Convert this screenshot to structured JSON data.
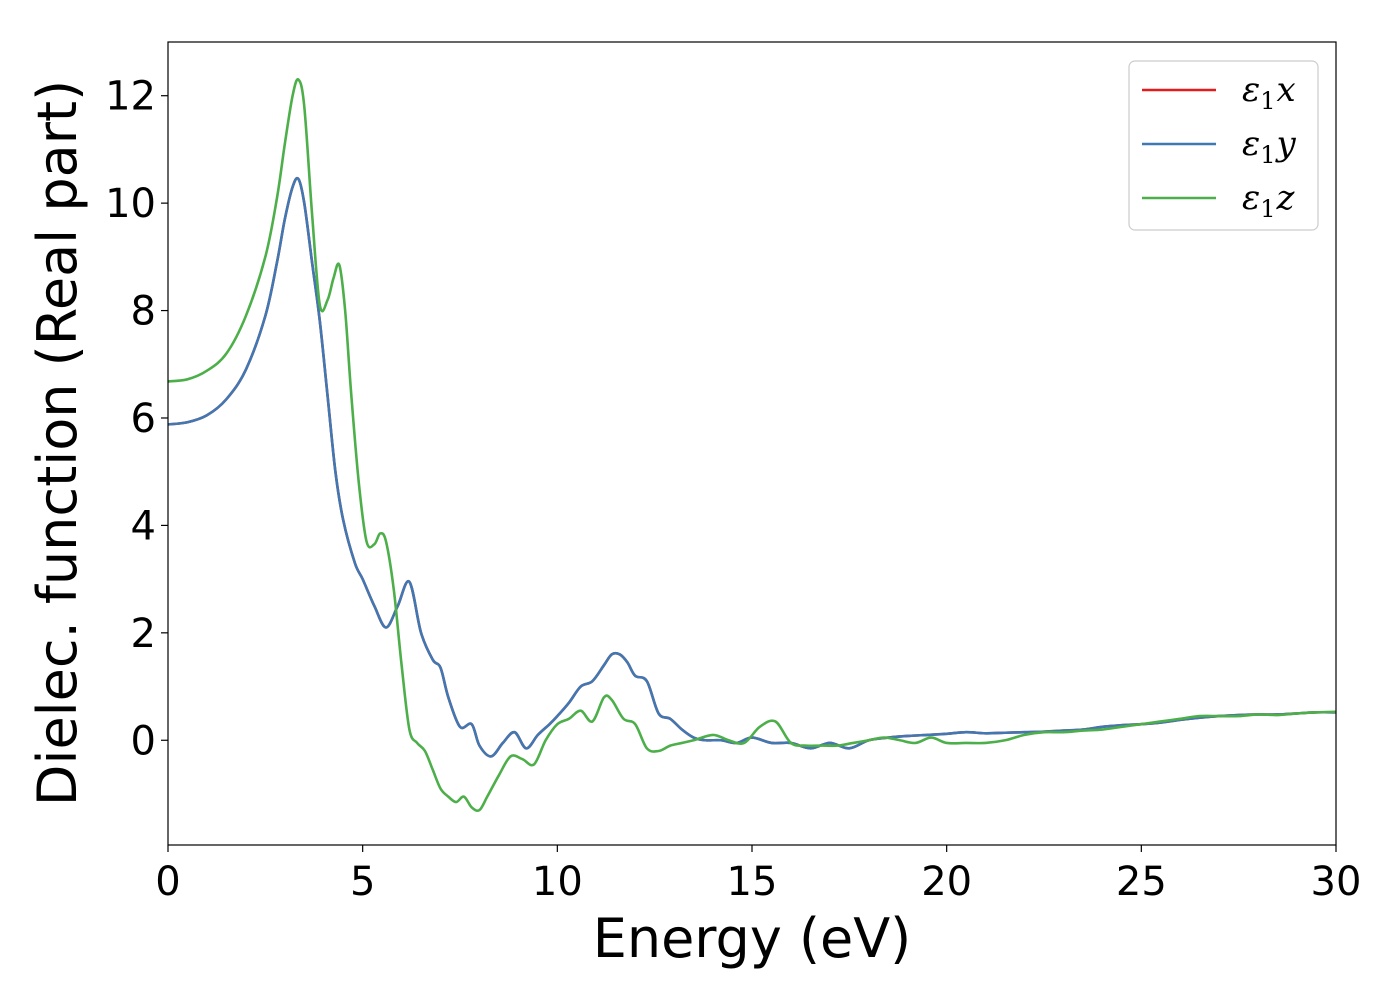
{
  "chart_data": {
    "type": "line",
    "title": "",
    "xlabel": "Energy (eV)",
    "ylabel": "Dielec. function (Real part)",
    "xlim": [
      0,
      30
    ],
    "ylim": [
      -1.95,
      13.0
    ],
    "xticks": [
      0,
      5,
      10,
      15,
      20,
      25,
      30
    ],
    "yticks": [
      0,
      2,
      4,
      6,
      8,
      10,
      12
    ],
    "grid": false,
    "legend_position": "top-right",
    "series": [
      {
        "name": "ε1x",
        "name_base": "ε",
        "name_sub": "1",
        "name_suffix": "x",
        "color": "#e41a1c",
        "x": [
          0,
          0.5,
          1.0,
          1.5,
          2.0,
          2.5,
          2.8,
          3.0,
          3.2,
          3.35,
          3.5,
          3.7,
          3.9,
          4.1,
          4.3,
          4.5,
          4.8,
          5.0,
          5.3,
          5.6,
          5.9,
          6.2,
          6.5,
          6.8,
          7.0,
          7.2,
          7.5,
          7.8,
          8.0,
          8.3,
          8.6,
          8.9,
          9.2,
          9.5,
          9.8,
          10.0,
          10.3,
          10.6,
          10.9,
          11.2,
          11.4,
          11.6,
          11.8,
          12.0,
          12.3,
          12.6,
          12.9,
          13.2,
          13.5,
          13.8,
          14.2,
          14.6,
          15.0,
          15.5,
          16.0,
          16.5,
          17.0,
          17.5,
          18.0,
          18.5,
          19.0,
          19.5,
          20.0,
          20.5,
          21.0,
          21.5,
          22.0,
          22.5,
          23.0,
          23.5,
          24.0,
          24.5,
          25.0,
          25.5,
          26.0,
          26.5,
          27.0,
          27.5,
          28.0,
          28.5,
          29.0,
          29.5,
          30.0
        ],
        "values": [
          5.88,
          5.92,
          6.05,
          6.35,
          6.9,
          7.9,
          8.9,
          9.7,
          10.3,
          10.45,
          10.0,
          8.9,
          7.8,
          6.4,
          5.0,
          4.1,
          3.3,
          3.0,
          2.5,
          2.1,
          2.5,
          2.95,
          2.0,
          1.5,
          1.35,
          0.8,
          0.25,
          0.3,
          -0.1,
          -0.3,
          -0.05,
          0.15,
          -0.15,
          0.1,
          0.3,
          0.45,
          0.7,
          1.0,
          1.1,
          1.4,
          1.6,
          1.6,
          1.45,
          1.2,
          1.1,
          0.5,
          0.4,
          0.2,
          0.05,
          0.0,
          0.0,
          -0.05,
          0.05,
          -0.05,
          -0.05,
          -0.15,
          -0.05,
          -0.15,
          0.0,
          0.05,
          0.08,
          0.1,
          0.12,
          0.15,
          0.13,
          0.14,
          0.15,
          0.16,
          0.18,
          0.2,
          0.25,
          0.28,
          0.3,
          0.33,
          0.38,
          0.42,
          0.45,
          0.47,
          0.48,
          0.48,
          0.5,
          0.52,
          0.52
        ]
      },
      {
        "name": "ε1y",
        "name_base": "ε",
        "name_sub": "1",
        "name_suffix": "y",
        "color": "#3f78b2",
        "x": [
          0,
          0.5,
          1.0,
          1.5,
          2.0,
          2.5,
          2.8,
          3.0,
          3.2,
          3.35,
          3.5,
          3.7,
          3.9,
          4.1,
          4.3,
          4.5,
          4.8,
          5.0,
          5.3,
          5.6,
          5.9,
          6.2,
          6.5,
          6.8,
          7.0,
          7.2,
          7.5,
          7.8,
          8.0,
          8.3,
          8.6,
          8.9,
          9.2,
          9.5,
          9.8,
          10.0,
          10.3,
          10.6,
          10.9,
          11.2,
          11.4,
          11.6,
          11.8,
          12.0,
          12.3,
          12.6,
          12.9,
          13.2,
          13.5,
          13.8,
          14.2,
          14.6,
          15.0,
          15.5,
          16.0,
          16.5,
          17.0,
          17.5,
          18.0,
          18.5,
          19.0,
          19.5,
          20.0,
          20.5,
          21.0,
          21.5,
          22.0,
          22.5,
          23.0,
          23.5,
          24.0,
          24.5,
          25.0,
          25.5,
          26.0,
          26.5,
          27.0,
          27.5,
          28.0,
          28.5,
          29.0,
          29.5,
          30.0
        ],
        "values": [
          5.88,
          5.92,
          6.05,
          6.35,
          6.9,
          7.9,
          8.9,
          9.7,
          10.3,
          10.45,
          10.0,
          8.9,
          7.8,
          6.4,
          5.0,
          4.1,
          3.3,
          3.0,
          2.5,
          2.1,
          2.5,
          2.95,
          2.0,
          1.5,
          1.35,
          0.8,
          0.25,
          0.3,
          -0.1,
          -0.3,
          -0.05,
          0.15,
          -0.15,
          0.1,
          0.3,
          0.45,
          0.7,
          1.0,
          1.1,
          1.4,
          1.6,
          1.6,
          1.45,
          1.2,
          1.1,
          0.5,
          0.4,
          0.2,
          0.05,
          0.0,
          0.0,
          -0.05,
          0.05,
          -0.05,
          -0.05,
          -0.15,
          -0.05,
          -0.15,
          0.0,
          0.05,
          0.08,
          0.1,
          0.12,
          0.15,
          0.13,
          0.14,
          0.15,
          0.16,
          0.18,
          0.2,
          0.25,
          0.28,
          0.3,
          0.33,
          0.38,
          0.42,
          0.45,
          0.47,
          0.48,
          0.48,
          0.5,
          0.52,
          0.52
        ]
      },
      {
        "name": "ε1z",
        "name_base": "ε",
        "name_sub": "1",
        "name_suffix": "z",
        "color": "#4daf4a",
        "x": [
          0,
          0.5,
          1.0,
          1.5,
          2.0,
          2.5,
          2.8,
          3.0,
          3.2,
          3.35,
          3.5,
          3.7,
          3.9,
          4.1,
          4.25,
          4.4,
          4.55,
          4.7,
          4.9,
          5.1,
          5.3,
          5.45,
          5.6,
          5.8,
          6.0,
          6.2,
          6.4,
          6.6,
          6.8,
          7.0,
          7.2,
          7.4,
          7.6,
          7.8,
          8.0,
          8.2,
          8.5,
          8.8,
          9.1,
          9.4,
          9.7,
          10.0,
          10.3,
          10.6,
          10.9,
          11.2,
          11.4,
          11.7,
          12.0,
          12.3,
          12.6,
          12.9,
          13.2,
          13.5,
          14.0,
          14.4,
          14.8,
          15.2,
          15.6,
          16.0,
          16.4,
          16.8,
          17.2,
          17.6,
          18.0,
          18.4,
          18.8,
          19.2,
          19.6,
          20.0,
          20.5,
          21.0,
          21.5,
          22.0,
          22.5,
          23.0,
          23.5,
          24.0,
          24.5,
          25.0,
          25.5,
          26.0,
          26.5,
          27.0,
          27.5,
          28.0,
          28.5,
          29.0,
          29.5,
          30.0
        ],
        "values": [
          6.68,
          6.72,
          6.88,
          7.2,
          7.9,
          9.0,
          10.1,
          11.1,
          12.0,
          12.3,
          11.8,
          9.8,
          8.1,
          8.2,
          8.6,
          8.85,
          8.0,
          6.5,
          4.8,
          3.7,
          3.65,
          3.85,
          3.7,
          2.8,
          1.4,
          0.2,
          -0.05,
          -0.2,
          -0.55,
          -0.9,
          -1.05,
          -1.15,
          -1.05,
          -1.25,
          -1.3,
          -1.05,
          -0.65,
          -0.3,
          -0.35,
          -0.45,
          0.0,
          0.3,
          0.4,
          0.55,
          0.35,
          0.8,
          0.75,
          0.4,
          0.3,
          -0.15,
          -0.2,
          -0.1,
          -0.05,
          0.0,
          0.1,
          0.0,
          -0.05,
          0.25,
          0.35,
          -0.05,
          -0.1,
          -0.1,
          -0.1,
          -0.05,
          0.0,
          0.05,
          0.0,
          -0.05,
          0.05,
          -0.05,
          -0.05,
          -0.05,
          0.0,
          0.1,
          0.15,
          0.15,
          0.18,
          0.2,
          0.25,
          0.3,
          0.35,
          0.4,
          0.45,
          0.45,
          0.45,
          0.48,
          0.47,
          0.5,
          0.52,
          0.53
        ]
      }
    ]
  }
}
